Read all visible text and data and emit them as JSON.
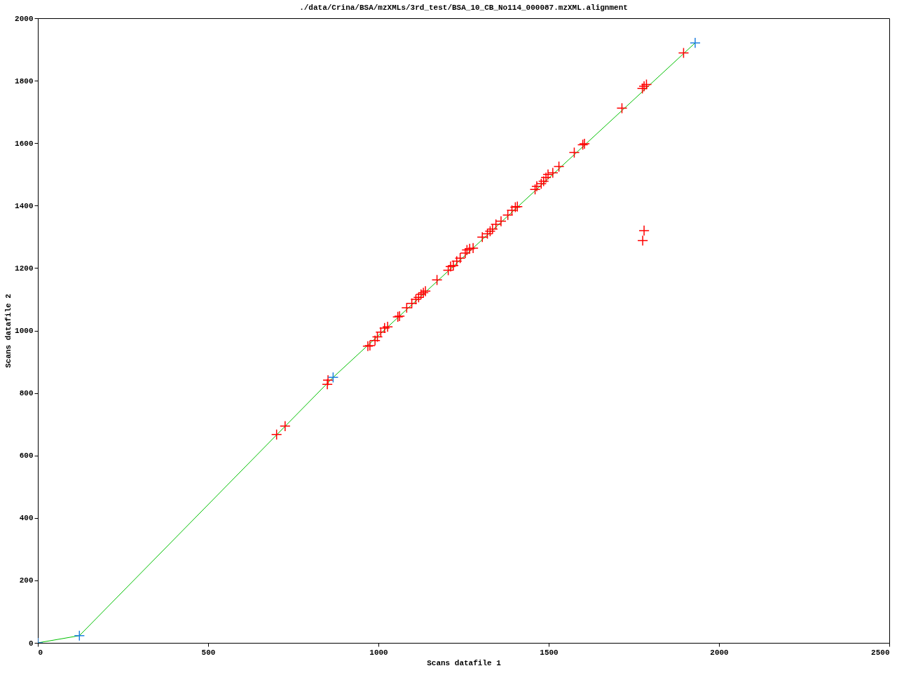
{
  "chart_data": {
    "type": "scatter",
    "title": "./data/Crina/BSA/mzXMLs/3rd_test/BSA_10_CB_No114_000087.mzXML.alignment",
    "xlabel": "Scans datafile 1",
    "ylabel": "Scans datafile 2",
    "xlim": [
      0,
      2500
    ],
    "ylim": [
      0,
      2000
    ],
    "xticks": [
      0,
      500,
      1000,
      1500,
      2000,
      2500
    ],
    "yticks": [
      0,
      200,
      400,
      600,
      800,
      1000,
      1200,
      1400,
      1600,
      1800,
      2000
    ],
    "grid": false,
    "series": [
      {
        "type": "line",
        "color": "#00c000",
        "marker": "none",
        "x": [
          0,
          122,
          867,
          1930
        ],
        "values": [
          0,
          23,
          850,
          1921
        ]
      },
      {
        "color": "#ff0000",
        "marker": "cross",
        "x": [
          701,
          726,
          852,
          850,
          969,
          975,
          990,
          997,
          1007,
          1018,
          1027,
          1057,
          1062,
          1083,
          1098,
          1110,
          1118,
          1125,
          1132,
          1138,
          1172,
          1205,
          1212,
          1220,
          1230,
          1240,
          1255,
          1260,
          1268,
          1278,
          1305,
          1320,
          1328,
          1335,
          1345,
          1360,
          1380,
          1392,
          1402,
          1408,
          1460,
          1465,
          1478,
          1485,
          1492,
          1498,
          1512,
          1530,
          1575,
          1600,
          1605,
          1715,
          1775,
          1780,
          1787,
          1896,
          1780,
          1776
        ],
        "values": [
          667,
          694,
          841,
          828,
          950,
          952,
          968,
          980,
          995,
          1008,
          1012,
          1044,
          1046,
          1073,
          1087,
          1100,
          1106,
          1116,
          1121,
          1126,
          1162,
          1193,
          1205,
          1208,
          1222,
          1232,
          1248,
          1258,
          1262,
          1264,
          1299,
          1310,
          1318,
          1325,
          1340,
          1350,
          1370,
          1385,
          1395,
          1397,
          1452,
          1462,
          1470,
          1478,
          1490,
          1500,
          1505,
          1525,
          1570,
          1595,
          1598,
          1712,
          1775,
          1782,
          1788,
          1889,
          1320,
          1288
        ]
      },
      {
        "color": "#2080e0",
        "marker": "cross",
        "x": [
          0,
          122,
          867,
          1930
        ],
        "values": [
          0,
          23,
          850,
          1921
        ]
      }
    ]
  }
}
